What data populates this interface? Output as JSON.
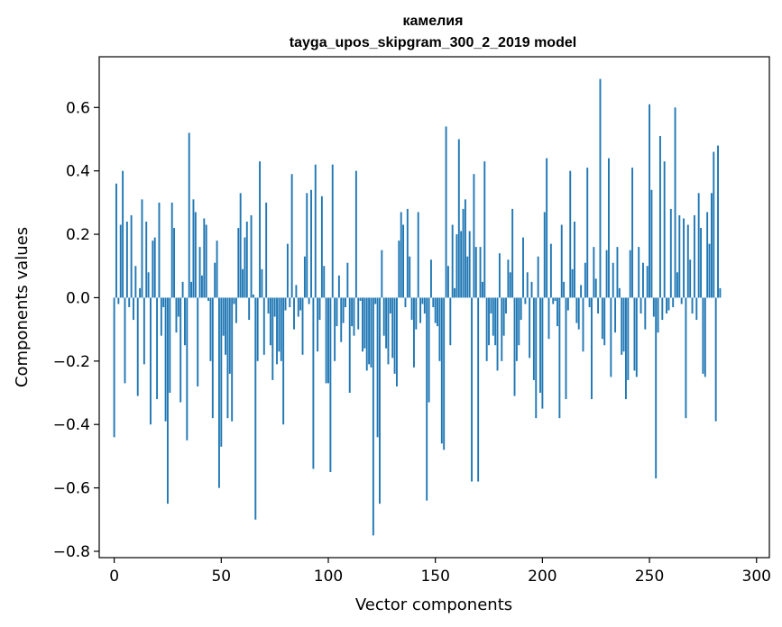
{
  "chart_data": {
    "type": "bar",
    "title": "камелия",
    "subtitle": "tayga_upos_skipgram_300_2_2019 model",
    "xlabel": "Vector components",
    "ylabel": "Components values",
    "xlim": [
      -7,
      306
    ],
    "ylim": [
      -0.82,
      0.76
    ],
    "xticks": [
      0,
      50,
      100,
      150,
      200,
      250,
      300
    ],
    "xtick_labels": [
      "0",
      "50",
      "100",
      "150",
      "200",
      "250",
      "300"
    ],
    "yticks": [
      -0.8,
      -0.6,
      -0.4,
      -0.2,
      0.0,
      0.2,
      0.4,
      0.6
    ],
    "ytick_labels": [
      "−0.8",
      "−0.6",
      "−0.4",
      "−0.2",
      "0.0",
      "0.2",
      "0.4",
      "0.6"
    ],
    "grid": false,
    "color": "#1f77b4",
    "x_start": 0,
    "values": [
      -0.44,
      0.36,
      -0.02,
      0.23,
      0.4,
      -0.27,
      0.24,
      -0.03,
      0.26,
      -0.07,
      0.1,
      -0.31,
      0.03,
      0.31,
      -0.21,
      0.24,
      0.08,
      -0.4,
      0.18,
      0.19,
      -0.32,
      0.3,
      -0.12,
      -0.03,
      -0.39,
      -0.65,
      -0.3,
      0.3,
      0.22,
      -0.11,
      -0.06,
      -0.33,
      0.05,
      -0.15,
      -0.45,
      0.52,
      0.05,
      0.31,
      0.27,
      -0.28,
      0.16,
      0.07,
      0.25,
      0.23,
      -0.01,
      -0.2,
      -0.38,
      0.11,
      0.18,
      -0.6,
      -0.47,
      -0.12,
      -0.18,
      -0.38,
      -0.24,
      -0.39,
      -0.02,
      -0.08,
      0.22,
      0.33,
      0.09,
      0.19,
      0.24,
      -0.07,
      0.26,
      0.01,
      -0.7,
      -0.2,
      0.43,
      0.09,
      -0.18,
      0.3,
      -0.05,
      -0.15,
      -0.26,
      -0.06,
      -0.21,
      -0.17,
      -0.2,
      -0.4,
      -0.04,
      0.17,
      -0.03,
      0.39,
      -0.1,
      0.04,
      -0.06,
      -0.04,
      -0.18,
      0.13,
      0.33,
      -0.02,
      0.34,
      -0.54,
      0.42,
      -0.17,
      -0.07,
      0.32,
      0.1,
      -0.27,
      -0.27,
      -0.55,
      0.42,
      -0.2,
      -0.09,
      0.07,
      -0.14,
      -0.08,
      -0.03,
      0.11,
      -0.3,
      -0.09,
      -0.12,
      0.4,
      -0.1,
      -0.01,
      -0.17,
      -0.16,
      -0.23,
      -0.21,
      -0.22,
      -0.75,
      -0.02,
      -0.44,
      -0.65,
      0.15,
      -0.12,
      -0.16,
      -0.21,
      -0.05,
      -0.19,
      -0.24,
      -0.28,
      0.18,
      0.27,
      0.23,
      -0.03,
      0.28,
      0.13,
      -0.07,
      -0.22,
      -0.1,
      0.27,
      -0.08,
      -0.02,
      -0.05,
      -0.64,
      -0.33,
      0.12,
      -0.03,
      -0.08,
      -0.09,
      -0.2,
      -0.46,
      -0.48,
      0.54,
      0.1,
      -0.15,
      0.23,
      0.03,
      0.2,
      0.5,
      0.21,
      0.28,
      0.31,
      0.13,
      0.21,
      -0.58,
      0.39,
      0.16,
      -0.58,
      0.16,
      0.05,
      0.43,
      -0.2,
      -0.15,
      -0.05,
      -0.12,
      -0.15,
      -0.23,
      0.14,
      -0.2,
      -0.12,
      -0.05,
      0.12,
      0.08,
      0.28,
      -0.31,
      -0.2,
      -0.15,
      -0.07,
      0.19,
      -0.02,
      0.08,
      -0.19,
      0.05,
      -0.26,
      -0.38,
      0.13,
      -0.3,
      -0.35,
      0.27,
      0.44,
      -0.13,
      0.17,
      -0.02,
      -0.01,
      -0.09,
      -0.38,
      0.23,
      0.05,
      -0.32,
      -0.04,
      0.4,
      0.09,
      0.24,
      -0.08,
      -0.1,
      0.04,
      -0.17,
      0.11,
      0.41,
      -0.03,
      -0.32,
      0.16,
      0.06,
      -0.05,
      0.69,
      -0.13,
      -0.15,
      0.15,
      0.44,
      -0.25,
      0.11,
      -0.11,
      0.16,
      0.03,
      -0.18,
      -0.17,
      -0.32,
      -0.26,
      0.15,
      0.41,
      -0.23,
      -0.25,
      0.16,
      -0.05,
      0.11,
      -0.1,
      0.1,
      0.61,
      0.34,
      -0.06,
      -0.57,
      -0.11,
      0.51,
      -0.07,
      0.43,
      -0.05,
      -0.04,
      0.28,
      -0.03,
      0.6,
      0.08,
      0.26,
      -0.02,
      0.25,
      -0.38,
      0.23,
      0.12,
      -0.05,
      0.26,
      -0.07,
      0.33,
      0.22,
      -0.24,
      -0.25,
      0.27,
      0.17,
      0.33,
      0.46,
      -0.39,
      0.48,
      0.03
    ]
  }
}
